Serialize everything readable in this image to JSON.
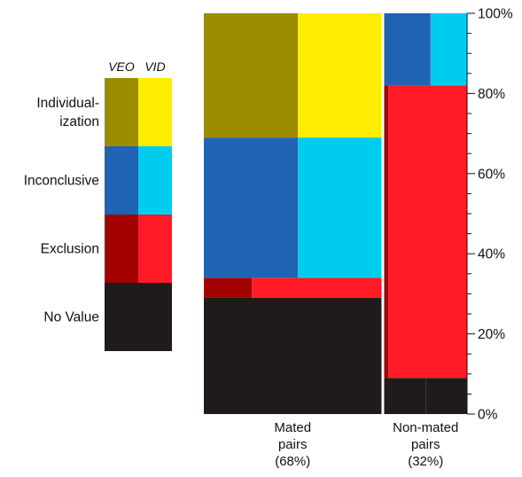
{
  "chart_data": {
    "type": "mosaic",
    "legend": {
      "headers": [
        "VEO",
        "VID"
      ],
      "entries": [
        {
          "label_lines": [
            "Individual-",
            "ization"
          ],
          "colors": [
            "#9e8c00",
            "#ffed00"
          ]
        },
        {
          "label_lines": [
            "Inconclusive"
          ],
          "colors": [
            "#1f64b4",
            "#00cdee"
          ]
        },
        {
          "label_lines": [
            "Exclusion"
          ],
          "colors": [
            "#a30000",
            "#ff1a25"
          ]
        },
        {
          "label_lines": [
            "No Value"
          ],
          "colors": [
            "#1f1b1a",
            "#1f1b1a"
          ]
        }
      ]
    },
    "y_axis": {
      "range": [
        0,
        100
      ],
      "ticks": [
        0,
        20,
        40,
        60,
        80,
        100
      ],
      "minor_step": 5,
      "tick_labels": [
        "0%",
        "20%",
        "40%",
        "60%",
        "80%",
        "100%"
      ],
      "position": "right"
    },
    "categories": [
      {
        "label_lines": [
          "Mated",
          "pairs",
          "(68%)"
        ],
        "width_pct": 68,
        "segments": [
          {
            "name": "No Value",
            "veo_pct": 29,
            "vid_pct": 29
          },
          {
            "name": "Exclusion",
            "veo_pct": 5,
            "vid_pct": 5
          },
          {
            "name": "Inconclusive",
            "veo_pct": 35,
            "vid_pct": 35
          },
          {
            "name": "Individualization",
            "veo_pct": 31,
            "vid_pct": 31
          }
        ],
        "veo_share": [
          0.02,
          0.27,
          0.53,
          0.53
        ]
      },
      {
        "label_lines": [
          "Non-mated",
          "pairs",
          "(32%)"
        ],
        "width_pct": 32,
        "segments": [
          {
            "name": "No Value",
            "veo_pct": 9,
            "vid_pct": 9
          },
          {
            "name": "Exclusion",
            "veo_pct": 73,
            "vid_pct": 73
          },
          {
            "name": "Inconclusive",
            "veo_pct": 18,
            "vid_pct": 18
          },
          {
            "name": "Individualization",
            "veo_pct": 0,
            "vid_pct": 0
          }
        ],
        "veo_share": [
          0.5,
          0.05,
          0.56,
          0.5
        ]
      }
    ]
  }
}
